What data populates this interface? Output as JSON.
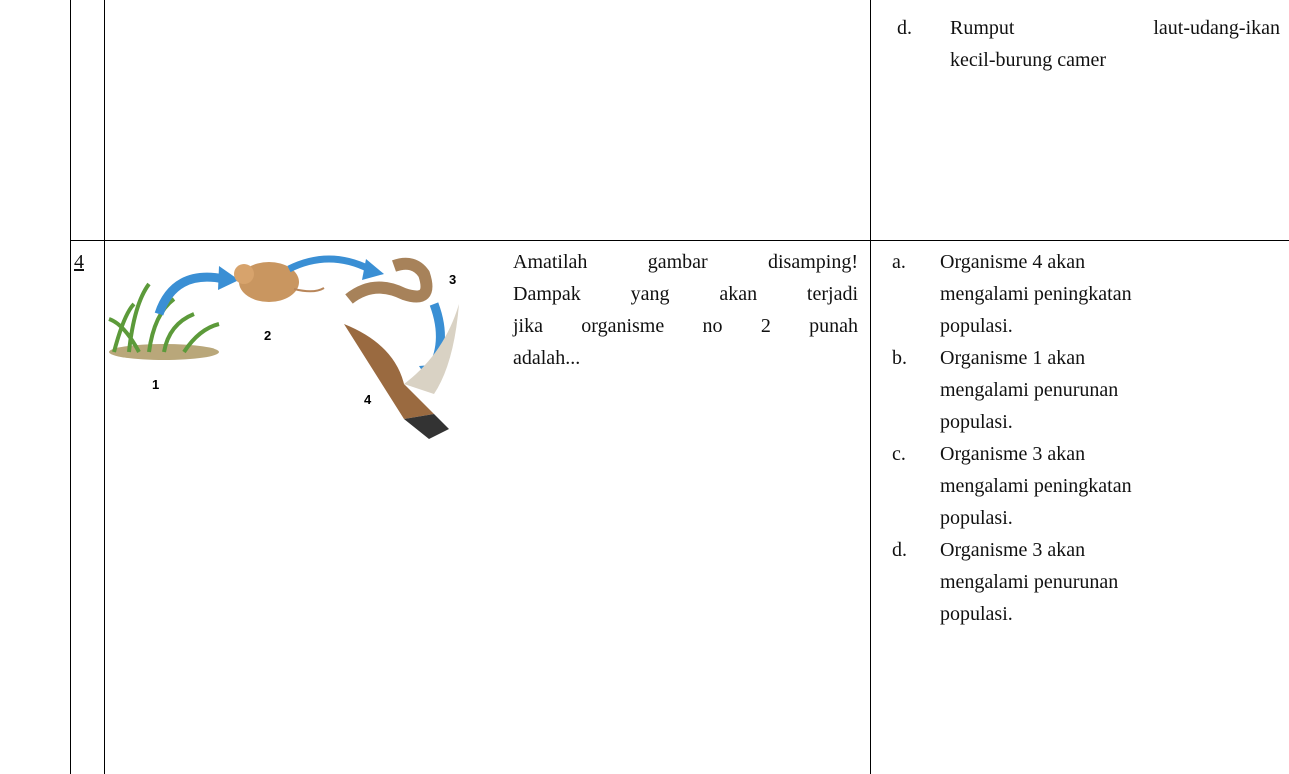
{
  "table": {
    "rows": [
      {
        "options": [
          {
            "label": "d.",
            "lines": [
              "Rumput laut-udang-ikan",
              "kecil-burung camer"
            ]
          }
        ]
      },
      {
        "number": "4",
        "figure": {
          "labels": [
            "1",
            "2",
            "3",
            "4"
          ]
        },
        "question": {
          "lines": [
            "Amatilah gambar disamping!",
            "Dampak yang akan terjadi",
            "jika organisme no 2 punah",
            "adalah..."
          ]
        },
        "options": [
          {
            "label": "a.",
            "lines": [
              "Organisme 4 akan",
              "mengalami peningkatan",
              "populasi."
            ]
          },
          {
            "label": "b.",
            "lines": [
              "Organisme 1 akan",
              "mengalami penurunan",
              "populasi."
            ]
          },
          {
            "label": "c.",
            "lines": [
              "Organisme 3 akan",
              "mengalami peningkatan",
              "populasi."
            ]
          },
          {
            "label": "d.",
            "lines": [
              "Organisme 3 akan",
              "mengalami penurunan",
              "populasi."
            ]
          }
        ]
      }
    ]
  }
}
